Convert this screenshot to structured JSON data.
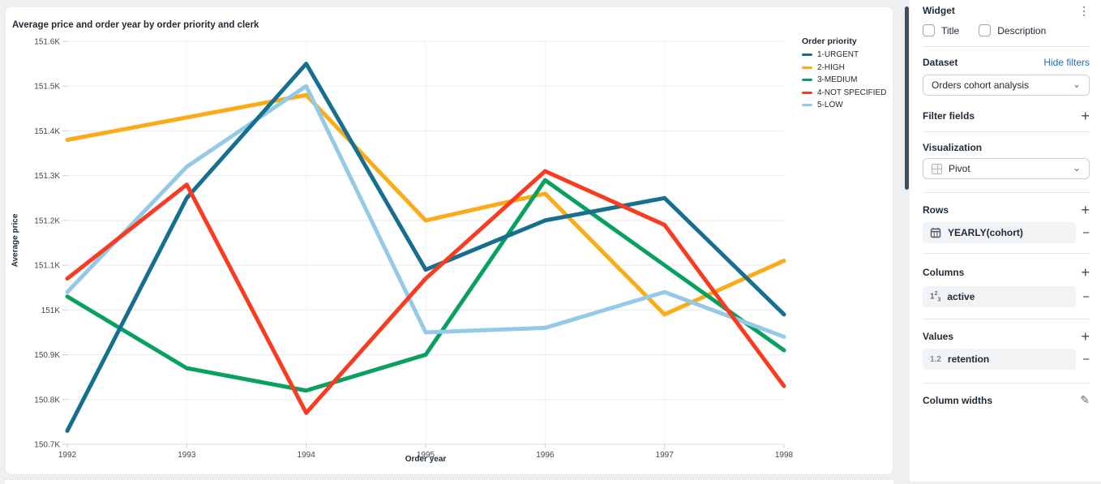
{
  "card": {
    "title": "Average price and order year by order priority and clerk"
  },
  "chart_data": {
    "type": "line",
    "title": "Average price and order year by order priority and clerk",
    "xlabel": "Order year",
    "ylabel": "Average price",
    "categories": [
      "1992",
      "1993",
      "1994",
      "1995",
      "1996",
      "1997",
      "1998"
    ],
    "ylim": [
      150700,
      151600
    ],
    "ytick_labels": [
      "151.6K",
      "151.5K",
      "151.4K",
      "151.3K",
      "151.2K",
      "151.1K",
      "151K",
      "150.9K",
      "150.8K",
      "150.7K"
    ],
    "grid": true,
    "legend_title": "Order priority",
    "legend_position": "right",
    "series": [
      {
        "name": "1-URGENT",
        "color": "#176f8f",
        "z": 3,
        "values": [
          150730,
          151250,
          151550,
          151090,
          151200,
          151250,
          150990
        ]
      },
      {
        "name": "2-HIGH",
        "color": "#fbab18",
        "z": 0,
        "values": [
          151380,
          151430,
          151480,
          151200,
          151260,
          150990,
          151110
        ]
      },
      {
        "name": "3-MEDIUM",
        "color": "#0aa05f",
        "z": 1,
        "values": [
          151030,
          150870,
          150820,
          150900,
          151290,
          151100,
          150910
        ]
      },
      {
        "name": "4-NOT SPECIFIED",
        "color": "#f93b22",
        "z": 4,
        "values": [
          151070,
          151280,
          150770,
          151070,
          151310,
          151190,
          150830
        ]
      },
      {
        "name": "5-LOW",
        "color": "#94c9e8",
        "z": 2,
        "values": [
          151040,
          151320,
          151500,
          150950,
          150960,
          151040,
          150940
        ]
      }
    ]
  },
  "sidebar": {
    "widget": {
      "title": "Widget"
    },
    "checkboxes": [
      {
        "label": "Title",
        "checked": false
      },
      {
        "label": "Description",
        "checked": false
      }
    ],
    "dataset": {
      "label": "Dataset",
      "action": "Hide filters",
      "selected": "Orders cohort analysis"
    },
    "filter_fields": {
      "label": "Filter fields"
    },
    "visualization": {
      "label": "Visualization",
      "selected": "Pivot"
    },
    "rows": {
      "label": "Rows",
      "item": "YEARLY(cohort)"
    },
    "columns": {
      "label": "Columns",
      "item": "active"
    },
    "values": {
      "label": "Values",
      "item": "retention"
    },
    "column_widths": {
      "label": "Column widths"
    }
  },
  "icons": {
    "kebab": "⋮",
    "chevron": "⌄",
    "plus": "+",
    "minus": "−",
    "pencil": "✎",
    "number_icon": "1",
    "number_sup": "2",
    "number_sub": "3",
    "decimal_icon": "1.2"
  },
  "colors": {
    "accent_link": "#1f6fc4",
    "scrollbar": "#3f4f5d",
    "pill_bg": "#f1f3f5"
  }
}
